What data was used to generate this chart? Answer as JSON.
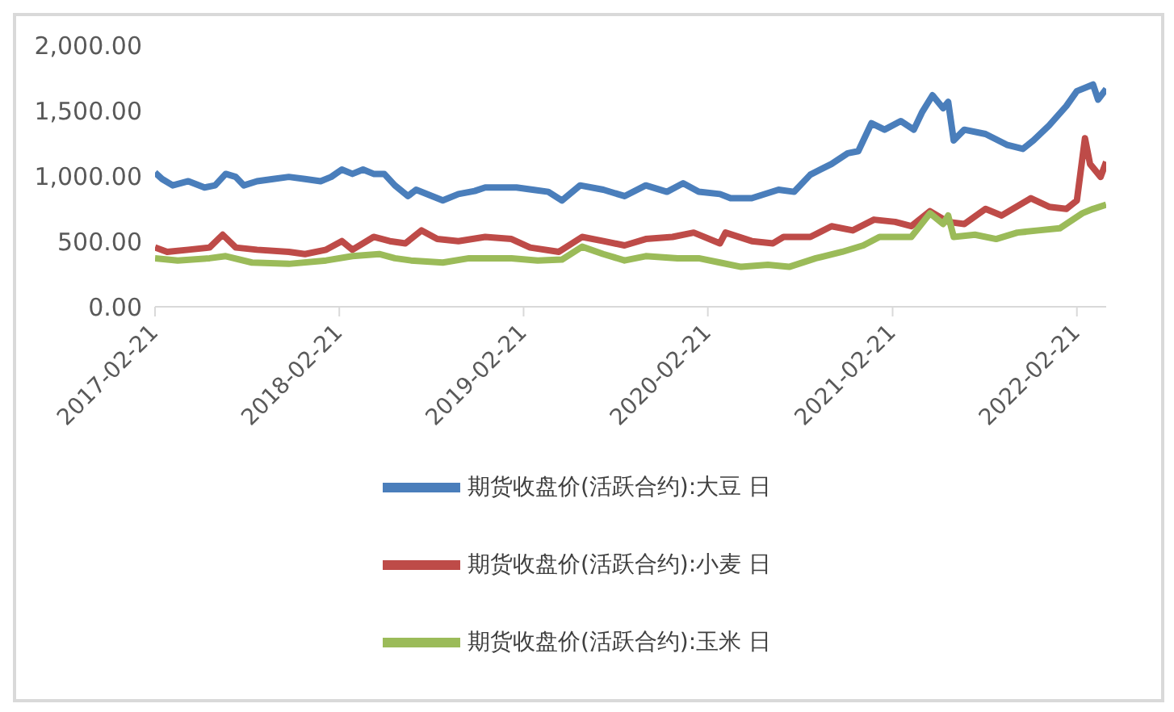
{
  "chart_data": {
    "type": "line",
    "legend": "bottom",
    "line_style": "solid",
    "marker": "none",
    "xlim": [
      "2017-02-21",
      "2022-04-20"
    ],
    "xticks": [
      "2017-02-21",
      "2018-02-21",
      "2019-02-21",
      "2020-02-21",
      "2021-02-21",
      "2022-02-21"
    ],
    "ylim": [
      0,
      2000
    ],
    "yticks": [
      {
        "value": 0,
        "label": "0.00"
      },
      {
        "value": 500,
        "label": "500.00"
      },
      {
        "value": 1000,
        "label": "1,000.00"
      },
      {
        "value": 1500,
        "label": "1,500.00"
      },
      {
        "value": 2000,
        "label": "2,000.00"
      }
    ],
    "series": [
      {
        "name": "期货收盘价(活跃合约):大豆 日",
        "color": "#4a7ebb",
        "x": [
          "2017-02-21",
          "2017-03-07",
          "2017-03-28",
          "2017-04-28",
          "2017-05-30",
          "2017-06-20",
          "2017-07-11",
          "2017-07-31",
          "2017-08-16",
          "2017-09-11",
          "2017-10-13",
          "2017-11-13",
          "2017-12-15",
          "2018-01-15",
          "2018-02-05",
          "2018-02-26",
          "2018-03-19",
          "2018-04-09",
          "2018-04-30",
          "2018-05-21",
          "2018-06-11",
          "2018-07-07",
          "2018-07-23",
          "2018-08-24",
          "2018-09-14",
          "2018-10-15",
          "2018-11-16",
          "2018-12-07",
          "2019-01-07",
          "2019-02-07",
          "2019-03-11",
          "2019-04-11",
          "2019-05-08",
          "2019-06-13",
          "2019-07-29",
          "2019-09-09",
          "2019-10-21",
          "2019-12-02",
          "2020-01-03",
          "2020-02-03",
          "2020-03-16",
          "2020-04-06",
          "2020-05-18",
          "2020-07-10",
          "2020-08-10",
          "2020-09-11",
          "2020-10-23",
          "2020-11-24",
          "2020-12-15",
          "2021-01-10",
          "2021-02-05",
          "2021-03-09",
          "2021-04-04",
          "2021-04-20",
          "2021-05-11",
          "2021-06-01",
          "2021-06-11",
          "2021-06-22",
          "2021-07-13",
          "2021-08-24",
          "2021-10-05",
          "2021-11-06",
          "2021-11-27",
          "2021-12-28",
          "2022-01-31",
          "2022-02-21",
          "2022-03-25",
          "2022-04-04",
          "2022-04-20"
        ],
        "values": [
          1026,
          977,
          928,
          960,
          912,
          928,
          1016,
          993,
          928,
          960,
          977,
          993,
          977,
          960,
          993,
          1049,
          1016,
          1049,
          1016,
          1016,
          928,
          846,
          895,
          846,
          813,
          862,
          885,
          912,
          912,
          912,
          895,
          879,
          813,
          928,
          895,
          846,
          928,
          879,
          944,
          879,
          862,
          830,
          830,
          895,
          879,
          1010,
          1092,
          1174,
          1190,
          1403,
          1354,
          1420,
          1354,
          1485,
          1617,
          1518,
          1567,
          1272,
          1354,
          1321,
          1239,
          1207,
          1272,
          1387,
          1535,
          1649,
          1699,
          1584,
          1666
        ]
      },
      {
        "name": "期货收盘价(活跃合约):小麦 日",
        "color": "#be4b48",
        "x": [
          "2017-02-21",
          "2017-03-17",
          "2017-04-28",
          "2017-06-09",
          "2017-07-05",
          "2017-07-31",
          "2017-09-11",
          "2017-11-13",
          "2017-12-15",
          "2018-01-26",
          "2018-02-26",
          "2018-03-19",
          "2018-04-30",
          "2018-06-01",
          "2018-07-02",
          "2018-08-03",
          "2018-09-03",
          "2018-10-15",
          "2018-12-07",
          "2019-01-28",
          "2019-03-06",
          "2019-05-02",
          "2019-06-17",
          "2019-07-29",
          "2019-09-09",
          "2019-10-21",
          "2019-12-13",
          "2020-01-24",
          "2020-03-16",
          "2020-03-27",
          "2020-05-18",
          "2020-06-29",
          "2020-07-20",
          "2020-09-11",
          "2020-10-23",
          "2020-12-04",
          "2021-01-15",
          "2021-02-26",
          "2021-03-30",
          "2021-05-06",
          "2021-06-11",
          "2021-07-13",
          "2021-08-24",
          "2021-09-25",
          "2021-11-22",
          "2021-12-28",
          "2022-01-31",
          "2022-02-21",
          "2022-03-09",
          "2022-03-19",
          "2022-04-09",
          "2022-04-20"
        ],
        "values": [
          453,
          420,
          436,
          453,
          551,
          453,
          436,
          420,
          403,
          436,
          502,
          436,
          534,
          502,
          485,
          584,
          518,
          502,
          534,
          518,
          453,
          420,
          534,
          502,
          469,
          518,
          534,
          567,
          485,
          567,
          502,
          485,
          534,
          534,
          616,
          584,
          666,
          649,
          616,
          731,
          649,
          633,
          748,
          698,
          830,
          764,
          748,
          813,
          1289,
          1092,
          993,
          1108
        ]
      },
      {
        "name": "期货收盘价(活跃合约):玉米 日",
        "color": "#9bbb59",
        "x": [
          "2017-02-21",
          "2017-04-07",
          "2017-06-09",
          "2017-07-11",
          "2017-09-01",
          "2017-11-13",
          "2018-01-26",
          "2018-03-19",
          "2018-05-11",
          "2018-06-11",
          "2018-07-13",
          "2018-09-14",
          "2018-11-05",
          "2019-01-28",
          "2019-03-21",
          "2019-05-08",
          "2019-06-17",
          "2019-07-29",
          "2019-09-09",
          "2019-10-21",
          "2019-12-23",
          "2020-02-03",
          "2020-03-16",
          "2020-04-27",
          "2020-06-19",
          "2020-07-31",
          "2020-09-22",
          "2020-11-13",
          "2020-12-25",
          "2021-01-26",
          "2021-03-09",
          "2021-03-30",
          "2021-05-06",
          "2021-06-01",
          "2021-06-11",
          "2021-06-22",
          "2021-08-03",
          "2021-09-14",
          "2021-10-26",
          "2021-12-07",
          "2022-01-18",
          "2022-03-04",
          "2022-03-25",
          "2022-04-20"
        ],
        "values": [
          371,
          354,
          371,
          387,
          338,
          328,
          354,
          387,
          403,
          371,
          354,
          338,
          371,
          371,
          354,
          361,
          459,
          403,
          354,
          387,
          371,
          371,
          338,
          305,
          321,
          305,
          371,
          420,
          469,
          534,
          534,
          534,
          715,
          633,
          698,
          534,
          551,
          518,
          567,
          584,
          600,
          715,
          748,
          780
        ]
      }
    ]
  }
}
